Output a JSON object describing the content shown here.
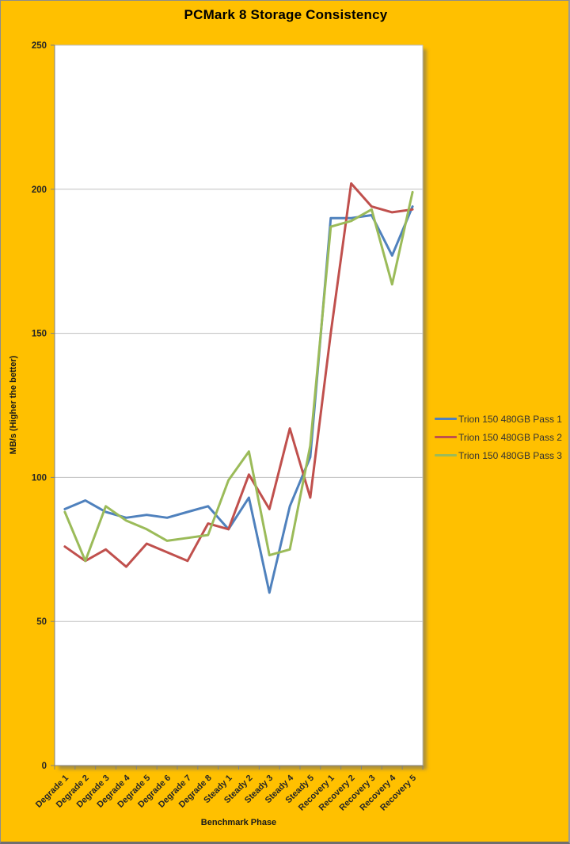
{
  "window": {
    "background_color": "#FFC000"
  },
  "chart_data": {
    "type": "line",
    "title": "PCMark 8 Storage Consistency",
    "xlabel": "Benchmark Phase",
    "ylabel": "MB/s (Higher the better)",
    "ylim": [
      0,
      250
    ],
    "ytick_step": 50,
    "yticks": [
      0,
      50,
      100,
      150,
      200,
      250
    ],
    "grid": true,
    "legend_position": "right",
    "line_width": 3,
    "categories": [
      "Degrade 1",
      "Degrade 2",
      "Degrade 3",
      "Degrade 4",
      "Degrade 5",
      "Degrade 6",
      "Degrade 7",
      "Degrade 8",
      "Steady 1",
      "Steady 2",
      "Steady 3",
      "Steady 4",
      "Steady 5",
      "Recovery 1",
      "Recovery 2",
      "Recovery 3",
      "Recovery 4",
      "Recovery 5"
    ],
    "series": [
      {
        "name": "Trion 150 480GB Pass 1",
        "color": "#4F81BD",
        "values": [
          89,
          92,
          88,
          86,
          87,
          86,
          88,
          90,
          82,
          93,
          60,
          90,
          107,
          190,
          190,
          191,
          177,
          194
        ]
      },
      {
        "name": "Trion 150 480GB Pass 2",
        "color": "#C0504D",
        "values": [
          76,
          71,
          75,
          69,
          77,
          74,
          71,
          84,
          82,
          101,
          89,
          117,
          93,
          150,
          202,
          194,
          192,
          193
        ]
      },
      {
        "name": "Trion 150 480GB Pass 3",
        "color": "#9BBB59",
        "values": [
          88,
          71,
          90,
          85,
          82,
          78,
          79,
          80,
          99,
          109,
          73,
          75,
          111,
          187,
          189,
          193,
          167,
          199
        ]
      }
    ]
  },
  "style": {
    "gridline_color": "#BFBFBF",
    "axis_color": "#808080",
    "tick_label_color": "#262626"
  }
}
